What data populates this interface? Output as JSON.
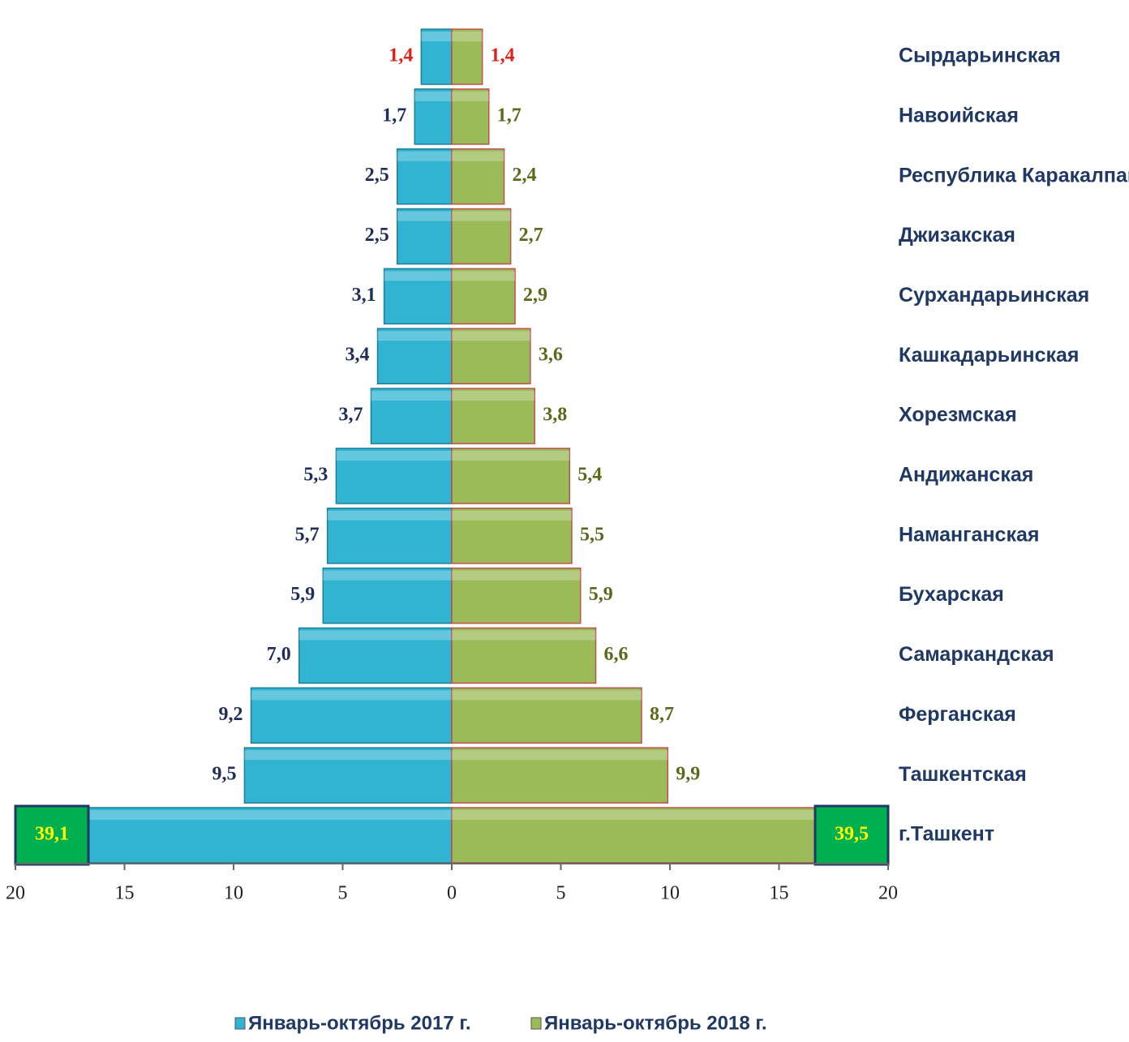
{
  "chart_data": {
    "type": "butterfly",
    "categories": [
      "Сырдарьинская",
      "Навоийская",
      "Республика Каракалпакстан",
      "Джизакская",
      "Сурхандарьинская",
      "Кашкадарьинская",
      "Хорезмская",
      "Андижанская",
      "Наманганская",
      "Бухарская",
      "Самаркандская",
      "Ферганская",
      "Ташкентская",
      "г.Ташкент"
    ],
    "series": [
      {
        "name": "Январь-октябрь 2017 г.",
        "color": "#31b4d2",
        "side": "left",
        "values": [
          1.4,
          1.7,
          2.5,
          2.5,
          3.1,
          3.4,
          3.7,
          5.3,
          5.7,
          5.9,
          7.0,
          9.2,
          9.5,
          39.1
        ],
        "value_labels": [
          "1,4",
          "1,7",
          "2,5",
          "2,5",
          "3,1",
          "3,4",
          "3,7",
          "5,3",
          "5,7",
          "5,9",
          "7,0",
          "9,2",
          "9,5",
          "39,1"
        ]
      },
      {
        "name": "Январь-октябрь 2018 г.",
        "color": "#9bbb59",
        "side": "right",
        "values": [
          1.4,
          1.7,
          2.4,
          2.7,
          2.9,
          3.6,
          3.8,
          5.4,
          5.5,
          5.9,
          6.6,
          8.7,
          9.9,
          39.5
        ],
        "value_labels": [
          "1,4",
          "1,7",
          "2,4",
          "2,7",
          "2,9",
          "3,6",
          "3,8",
          "5,4",
          "5,5",
          "5,9",
          "6,6",
          "8,7",
          "9,9",
          "39,5"
        ]
      }
    ],
    "xlim": [
      -20,
      20
    ],
    "xticks": [
      {
        "value": -20,
        "label": "20"
      },
      {
        "value": -15,
        "label": "15"
      },
      {
        "value": -10,
        "label": "10"
      },
      {
        "value": -5,
        "label": "5"
      },
      0,
      5,
      10,
      15,
      20
    ]
  }
}
